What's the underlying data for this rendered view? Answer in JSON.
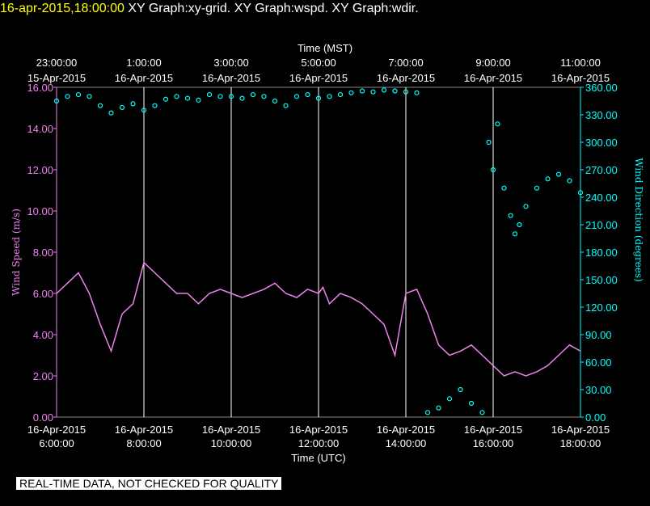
{
  "header": {
    "timestamp": "16-apr-2015,18:00:00",
    "graphs": [
      "XY Graph:xy-grid.",
      "XY Graph:wspd.",
      "XY Graph:wdir."
    ]
  },
  "notice": "REAL-TIME DATA, NOT CHECKED FOR QUALITY",
  "colors": {
    "background": "#000000",
    "speed": "#ee82ee",
    "direction": "#00ffff",
    "grid": "#ffffff",
    "header_timestamp": "#ffff00"
  },
  "chart_data": {
    "type": "line",
    "top_axis_title": "Time (MST)",
    "xlabel": "Time (UTC)",
    "ylabel_left": "Wind Speed (m/s)",
    "ylabel_right": "Wind Direction (degrees)",
    "x_range_utc_hours": [
      6.0,
      18.0
    ],
    "ylim_left": [
      0,
      16
    ],
    "ylim_right": [
      0,
      360
    ],
    "grid": "vertical",
    "left_ticks": [
      "0.00",
      "2.00",
      "4.00",
      "6.00",
      "8.00",
      "10.00",
      "12.00",
      "14.00",
      "16.00"
    ],
    "right_ticks": [
      "0.00",
      "30.00",
      "60.00",
      "90.00",
      "120.00",
      "150.00",
      "180.00",
      "210.00",
      "240.00",
      "270.00",
      "300.00",
      "330.00",
      "360.00"
    ],
    "bottom_ticks": [
      {
        "hour": 6,
        "date": "16-Apr-2015",
        "time": "6:00:00"
      },
      {
        "hour": 8,
        "date": "16-Apr-2015",
        "time": "8:00:00"
      },
      {
        "hour": 10,
        "date": "16-Apr-2015",
        "time": "10:00:00"
      },
      {
        "hour": 12,
        "date": "16-Apr-2015",
        "time": "12:00:00"
      },
      {
        "hour": 14,
        "date": "16-Apr-2015",
        "time": "14:00:00"
      },
      {
        "hour": 16,
        "date": "16-Apr-2015",
        "time": "16:00:00"
      },
      {
        "hour": 18,
        "date": "16-Apr-2015",
        "time": "18:00:00"
      }
    ],
    "top_ticks": [
      {
        "hour": 6,
        "time": "23:00:00",
        "date": "15-Apr-2015"
      },
      {
        "hour": 8,
        "time": "1:00:00",
        "date": "16-Apr-2015"
      },
      {
        "hour": 10,
        "time": "3:00:00",
        "date": "16-Apr-2015"
      },
      {
        "hour": 12,
        "time": "5:00:00",
        "date": "16-Apr-2015"
      },
      {
        "hour": 14,
        "time": "7:00:00",
        "date": "16-Apr-2015"
      },
      {
        "hour": 16,
        "time": "9:00:00",
        "date": "16-Apr-2015"
      },
      {
        "hour": 18,
        "time": "11:00:00",
        "date": "16-Apr-2015"
      }
    ],
    "series": [
      {
        "name": "Wind Speed (m/s)",
        "axis": "left",
        "style": "line",
        "x": [
          6.0,
          6.25,
          6.5,
          6.75,
          7.0,
          7.25,
          7.5,
          7.75,
          8.0,
          8.25,
          8.5,
          8.75,
          9.0,
          9.25,
          9.5,
          9.75,
          10.0,
          10.25,
          10.5,
          10.75,
          11.0,
          11.25,
          11.5,
          11.75,
          12.0,
          12.1,
          12.25,
          12.5,
          12.75,
          13.0,
          13.25,
          13.5,
          13.75,
          14.0,
          14.25,
          14.5,
          14.75,
          15.0,
          15.25,
          15.5,
          15.75,
          16.0,
          16.25,
          16.5,
          16.75,
          17.0,
          17.25,
          17.5,
          17.75,
          18.0
        ],
        "values": [
          6.0,
          6.5,
          7.0,
          6.0,
          4.5,
          3.2,
          5.0,
          5.5,
          7.5,
          7.0,
          6.5,
          6.0,
          6.0,
          5.5,
          6.0,
          6.2,
          6.0,
          5.8,
          6.0,
          6.2,
          6.5,
          6.0,
          5.8,
          6.2,
          6.0,
          6.3,
          5.5,
          6.0,
          5.8,
          5.5,
          5.0,
          4.5,
          3.0,
          6.0,
          6.2,
          5.0,
          3.5,
          3.0,
          3.2,
          3.5,
          3.0,
          2.5,
          2.0,
          2.2,
          2.0,
          2.2,
          2.5,
          3.0,
          3.5,
          3.2
        ]
      },
      {
        "name": "Wind Direction (degrees)",
        "axis": "right",
        "style": "points",
        "x": [
          6.0,
          6.25,
          6.5,
          6.75,
          7.0,
          7.25,
          7.5,
          7.75,
          8.0,
          8.25,
          8.5,
          8.75,
          9.0,
          9.25,
          9.5,
          9.75,
          10.0,
          10.25,
          10.5,
          10.75,
          11.0,
          11.25,
          11.5,
          11.75,
          12.0,
          12.25,
          12.5,
          12.75,
          13.0,
          13.25,
          13.5,
          13.75,
          14.0,
          14.25,
          14.5,
          14.75,
          15.0,
          15.25,
          15.5,
          15.75,
          15.9,
          16.0,
          16.1,
          16.25,
          16.4,
          16.5,
          16.6,
          16.75,
          17.0,
          17.25,
          17.5,
          17.75,
          18.0
        ],
        "values": [
          345,
          350,
          352,
          350,
          340,
          332,
          338,
          342,
          335,
          340,
          347,
          350,
          348,
          346,
          352,
          350,
          350,
          348,
          352,
          350,
          345,
          340,
          350,
          352,
          348,
          350,
          352,
          354,
          356,
          355,
          357,
          356,
          355,
          354,
          5,
          10,
          20,
          30,
          15,
          5,
          300,
          270,
          320,
          250,
          220,
          200,
          210,
          230,
          250,
          260,
          265,
          258,
          245
        ]
      }
    ]
  }
}
